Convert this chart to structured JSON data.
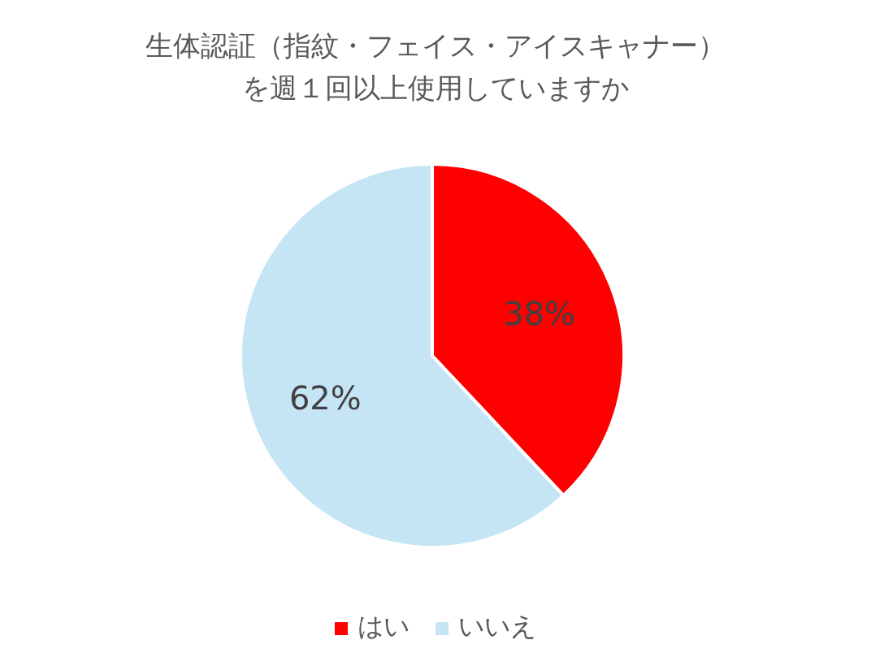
{
  "chart_data": {
    "type": "pie",
    "title": "生体認証（指紋・フェイス・アイスキャナー）を週１回以上使用していますか",
    "categories": [
      "はい",
      "いいえ"
    ],
    "values": [
      38,
      62
    ],
    "colors": [
      "#ff0000",
      "#c5e4f4"
    ],
    "value_labels": [
      "38%",
      "62%"
    ],
    "legend": "bottom"
  }
}
